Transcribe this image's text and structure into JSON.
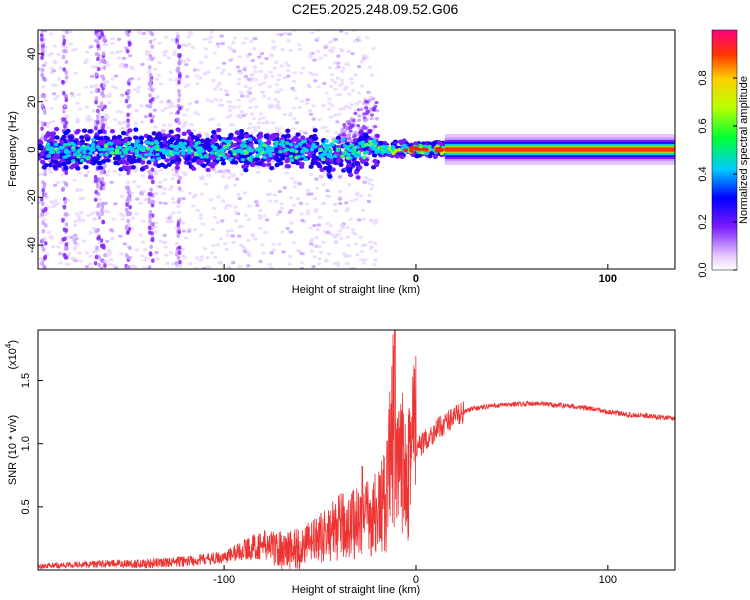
{
  "figure_title": "C2E5.2025.248.09.52.G06",
  "colors": {
    "snr_line": "#ee3333",
    "spectro_bg": "#ffffff",
    "axis": "#000000"
  },
  "chart_data": [
    {
      "type": "heatmap",
      "name": "spectrogram",
      "xlabel": "Height of straight line (km)",
      "ylabel": "Frequency (Hz)",
      "xlim": [
        -197,
        135
      ],
      "ylim": [
        -50,
        50
      ],
      "xticks": [
        -100,
        0,
        100
      ],
      "xtick_labels": [
        "-100",
        "0",
        "100"
      ],
      "yticks": [
        -40,
        -20,
        0,
        20,
        40
      ],
      "ytick_labels": [
        "-40",
        "-20",
        "0",
        "20",
        "40"
      ],
      "colorbar": {
        "label": "Normalized spectral amplitude",
        "range": [
          0.0,
          1.0
        ],
        "ticks": [
          0.0,
          0.2,
          0.4,
          0.6,
          0.8
        ],
        "tick_labels": [
          "0.0",
          "0.2",
          "0.4",
          "0.6",
          "0.8"
        ]
      },
      "description_points": {
        "carrier_frequency_hz": 0,
        "steady_from_km": 15,
        "noisy_until_km": -20
      }
    },
    {
      "type": "line",
      "name": "snr",
      "xlabel": "Height of straight line (km)",
      "ylabel": "SNR (10 * v/v)",
      "yscale_label": "(x10",
      "yscale_exp": "4",
      "yscale_close": ")",
      "xlim": [
        -197,
        135
      ],
      "ylim": [
        0.0,
        1.9
      ],
      "xticks": [
        -100,
        0,
        100
      ],
      "xtick_labels": [
        "-100",
        "0",
        "100"
      ],
      "yticks": [
        0.5,
        1.0,
        1.5
      ],
      "ytick_labels": [
        "0.5",
        "1.0",
        "1.5"
      ],
      "series": [
        {
          "name": "SNR",
          "x": [
            -197,
            -180,
            -160,
            -140,
            -120,
            -100,
            -90,
            -80,
            -70,
            -60,
            -50,
            -40,
            -35,
            -30,
            -25,
            -20,
            -15,
            -12,
            -10,
            -8,
            -5,
            0,
            10,
            20,
            30,
            40,
            50,
            60,
            70,
            80,
            90,
            100,
            110,
            120,
            135
          ],
          "y": [
            0.03,
            0.04,
            0.05,
            0.05,
            0.07,
            0.1,
            0.16,
            0.2,
            0.16,
            0.17,
            0.22,
            0.3,
            0.32,
            0.35,
            0.36,
            0.4,
            0.5,
            1.0,
            0.6,
            0.7,
            0.85,
            0.95,
            1.1,
            1.22,
            1.28,
            1.3,
            1.31,
            1.32,
            1.31,
            1.3,
            1.28,
            1.25,
            1.23,
            1.22,
            1.2
          ]
        }
      ],
      "peaks": [
        {
          "x": -11,
          "y": 1.9
        },
        {
          "x": -15,
          "y": 1.02
        },
        {
          "x": -28,
          "y": 0.82
        }
      ]
    }
  ]
}
